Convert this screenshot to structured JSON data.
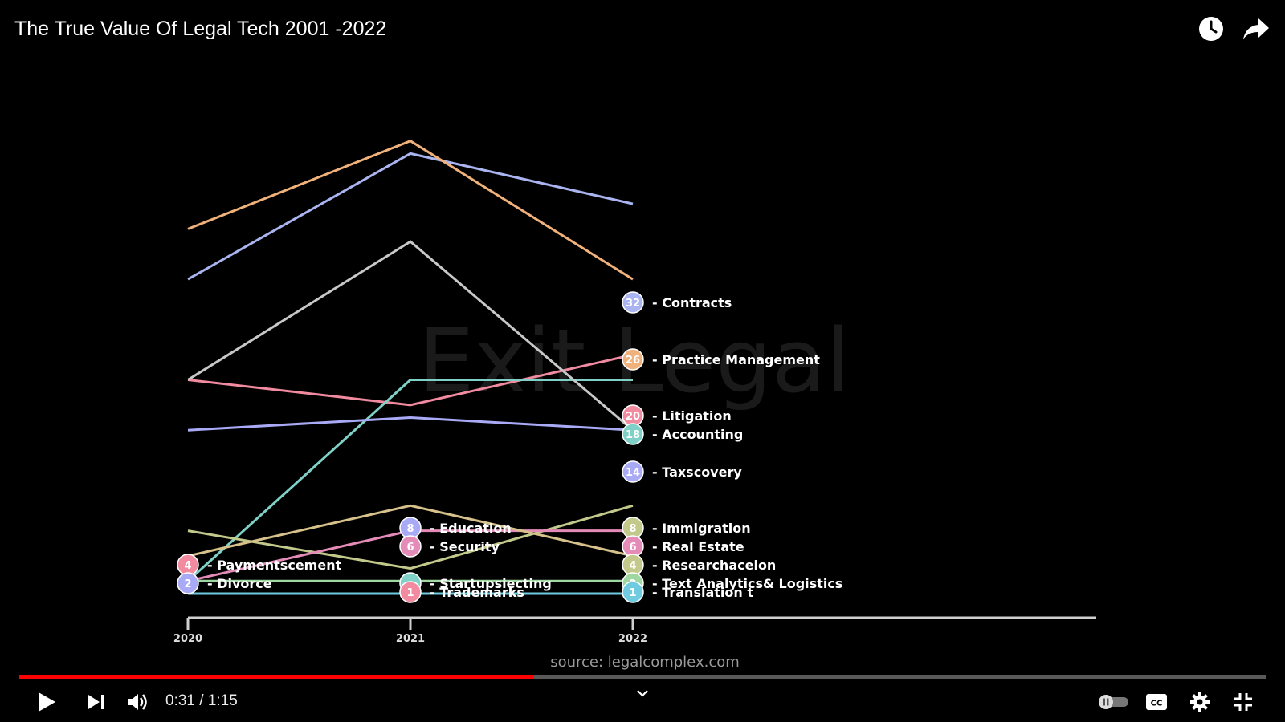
{
  "video": {
    "title": "The True Value Of Legal Tech 2001 -2022",
    "current_time": "0:31",
    "duration": "1:15",
    "time_display": "0:31 / 1:15",
    "progress_fraction": 0.413
  },
  "top_icons": [
    "watch-later-icon",
    "share-icon"
  ],
  "controls": [
    "play-icon",
    "next-icon",
    "volume-icon",
    "chevron-down-icon",
    "autoplay-toggle",
    "captions-icon",
    "settings-icon",
    "exit-fullscreen-icon"
  ],
  "controls_labels": {
    "cc": "CC"
  },
  "colors": {
    "progress_played": "#ff0000",
    "background": "#000000"
  },
  "chart": {
    "watermark": "Exit Legal",
    "source": "source:  legalcomplex.com",
    "x_labels": [
      "2020",
      "2021",
      "2022"
    ]
  },
  "chart_data": {
    "type": "line",
    "x": [
      "2020",
      "2021",
      "2022"
    ],
    "series": [
      {
        "name": "Contracts",
        "values": [
          26,
          36,
          32
        ],
        "color": "#aab4f0"
      },
      {
        "name": "Practice Management",
        "values": [
          30,
          37,
          26
        ],
        "color": "#f0b27a"
      },
      {
        "name": "Litigation",
        "values": [
          18,
          16,
          20
        ],
        "color": "#f28aa0"
      },
      {
        "name": "Accounting",
        "values": [
          2,
          18,
          18
        ],
        "color": "#7fd1c8"
      },
      {
        "name": "Taxscovery",
        "values": [
          18,
          29,
          14
        ],
        "color": "#c8c8c8"
      },
      {
        "name": "",
        "values": [
          14,
          15,
          14
        ],
        "color": "#a9aaf5"
      },
      {
        "name": "Immigration",
        "values": [
          6,
          3,
          8
        ],
        "color": "#c3c98a"
      },
      {
        "name": "Real Estate",
        "values": [
          2,
          6,
          6
        ],
        "color": "#e48bb8"
      },
      {
        "name": "Researchaceion",
        "values": [
          4,
          8,
          4
        ],
        "color": "#d6c28a"
      },
      {
        "name": "Text Analytics& Logistics",
        "values": [
          2,
          2,
          2
        ],
        "color": "#9fd7a0"
      },
      {
        "name": "Translation t",
        "values": [
          1,
          1,
          1
        ],
        "color": "#6ecbe0"
      }
    ],
    "end_labels": [
      {
        "rank": "32",
        "name": "Contracts"
      },
      {
        "rank": "26",
        "name": "Practice Management"
      },
      {
        "rank": "20",
        "name": "Litigation"
      },
      {
        "rank": "18",
        "name": "Accounting"
      },
      {
        "rank": "14",
        "name": "Taxscovery"
      },
      {
        "rank": "8",
        "name": "Immigration"
      },
      {
        "rank": "6",
        "name": "Real Estate"
      },
      {
        "rank": "4",
        "name": "Researchaceion"
      },
      {
        "rank": "2",
        "name": "Text Analytics& Logistics"
      },
      {
        "rank": "1",
        "name": "Translation t"
      }
    ],
    "mid_labels": [
      {
        "rank": "8",
        "name": "Education"
      },
      {
        "rank": "6",
        "name": "Security"
      },
      {
        "rank": "",
        "name": "Startupsiecting"
      },
      {
        "rank": "1",
        "name": "Trademarks"
      }
    ],
    "start_labels": [
      {
        "rank": "4",
        "name": "Paymentscement"
      },
      {
        "rank": "2",
        "name": "Divorce"
      }
    ]
  }
}
